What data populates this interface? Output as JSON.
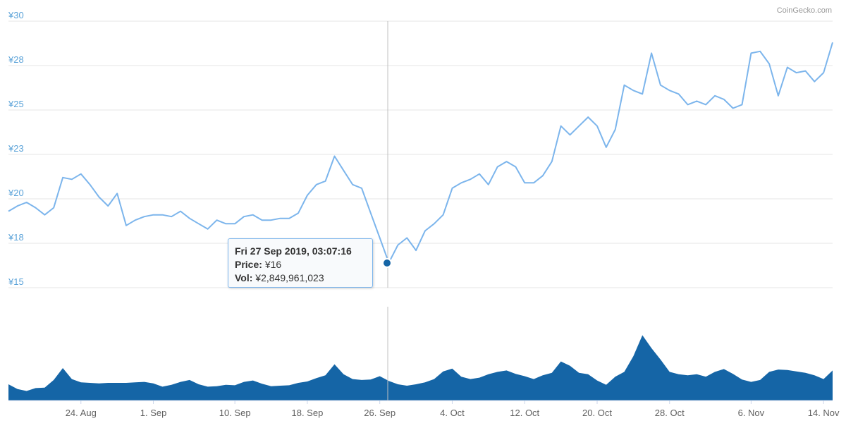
{
  "chart_data": [
    {
      "type": "line",
      "name": "price",
      "ylim": [
        15,
        30
      ],
      "y_ticks": [
        "¥15",
        "¥18",
        "¥20",
        "¥23",
        "¥25",
        "¥28",
        "¥30"
      ],
      "grid": true,
      "series": [
        {
          "color": "#7cb5ec",
          "x": [
            "2019-08-16",
            "2019-08-17",
            "2019-08-18",
            "2019-08-19",
            "2019-08-20",
            "2019-08-21",
            "2019-08-22",
            "2019-08-23",
            "2019-08-24",
            "2019-08-25",
            "2019-08-26",
            "2019-08-27",
            "2019-08-28",
            "2019-08-29",
            "2019-08-30",
            "2019-08-31",
            "2019-09-01",
            "2019-09-02",
            "2019-09-03",
            "2019-09-04",
            "2019-09-05",
            "2019-09-06",
            "2019-09-07",
            "2019-09-08",
            "2019-09-09",
            "2019-09-10",
            "2019-09-11",
            "2019-09-12",
            "2019-09-13",
            "2019-09-14",
            "2019-09-15",
            "2019-09-16",
            "2019-09-17",
            "2019-09-18",
            "2019-09-19",
            "2019-09-20",
            "2019-09-21",
            "2019-09-22",
            "2019-09-23",
            "2019-09-24",
            "2019-09-25",
            "2019-09-26",
            "2019-09-27",
            "2019-09-28",
            "2019-09-29",
            "2019-09-30",
            "2019-10-01",
            "2019-10-02",
            "2019-10-03",
            "2019-10-04",
            "2019-10-05",
            "2019-10-06",
            "2019-10-07",
            "2019-10-08",
            "2019-10-09",
            "2019-10-10",
            "2019-10-11",
            "2019-10-12",
            "2019-10-13",
            "2019-10-14",
            "2019-10-15",
            "2019-10-16",
            "2019-10-17",
            "2019-10-18",
            "2019-10-19",
            "2019-10-20",
            "2019-10-21",
            "2019-10-22",
            "2019-10-23",
            "2019-10-24",
            "2019-10-25",
            "2019-10-26",
            "2019-10-27",
            "2019-10-28",
            "2019-10-29",
            "2019-10-30",
            "2019-10-31",
            "2019-11-01",
            "2019-11-02",
            "2019-11-03",
            "2019-11-04",
            "2019-11-05",
            "2019-11-06",
            "2019-11-07",
            "2019-11-08",
            "2019-11-09",
            "2019-11-10",
            "2019-11-11",
            "2019-11-12",
            "2019-11-13",
            "2019-11-14",
            "2019-11-15"
          ],
          "values": [
            19.3,
            19.6,
            19.8,
            19.5,
            19.1,
            19.5,
            21.2,
            21.1,
            21.4,
            20.8,
            20.1,
            19.6,
            20.3,
            18.5,
            18.8,
            19.0,
            19.1,
            19.1,
            19.0,
            19.3,
            18.9,
            18.6,
            18.3,
            18.8,
            18.6,
            18.6,
            19.0,
            19.1,
            18.8,
            18.8,
            18.9,
            18.9,
            19.2,
            20.2,
            20.8,
            21.0,
            22.4,
            21.6,
            20.8,
            20.6,
            19.2,
            17.8,
            16.4,
            17.4,
            17.8,
            17.1,
            18.2,
            18.6,
            19.1,
            20.6,
            20.9,
            21.1,
            21.4,
            20.8,
            21.8,
            22.1,
            21.8,
            20.9,
            20.9,
            21.3,
            22.1,
            24.1,
            23.6,
            24.1,
            24.6,
            24.1,
            22.9,
            23.9,
            26.4,
            26.1,
            25.9,
            28.2,
            26.4,
            26.1,
            25.9,
            25.3,
            25.5,
            25.3,
            25.8,
            25.6,
            25.1,
            25.3,
            28.2,
            28.3,
            27.6,
            25.8,
            27.4,
            27.1,
            27.2,
            26.6,
            27.1,
            28.8
          ]
        }
      ]
    },
    {
      "type": "area",
      "name": "volume",
      "x_ticks": [
        "24. Aug",
        "1. Sep",
        "10. Sep",
        "18. Sep",
        "26. Sep",
        "4. Oct",
        "12. Oct",
        "20. Oct",
        "28. Oct",
        "6. Nov",
        "14. Nov"
      ],
      "series": [
        {
          "color": "#1565a6",
          "x": [
            "2019-08-16",
            "2019-08-17",
            "2019-08-18",
            "2019-08-19",
            "2019-08-20",
            "2019-08-21",
            "2019-08-22",
            "2019-08-23",
            "2019-08-24",
            "2019-08-25",
            "2019-08-26",
            "2019-08-27",
            "2019-08-28",
            "2019-08-29",
            "2019-08-30",
            "2019-08-31",
            "2019-09-01",
            "2019-09-02",
            "2019-09-03",
            "2019-09-04",
            "2019-09-05",
            "2019-09-06",
            "2019-09-07",
            "2019-09-08",
            "2019-09-09",
            "2019-09-10",
            "2019-09-11",
            "2019-09-12",
            "2019-09-13",
            "2019-09-14",
            "2019-09-15",
            "2019-09-16",
            "2019-09-17",
            "2019-09-18",
            "2019-09-19",
            "2019-09-20",
            "2019-09-21",
            "2019-09-22",
            "2019-09-23",
            "2019-09-24",
            "2019-09-25",
            "2019-09-26",
            "2019-09-27",
            "2019-09-28",
            "2019-09-29",
            "2019-09-30",
            "2019-10-01",
            "2019-10-02",
            "2019-10-03",
            "2019-10-04",
            "2019-10-05",
            "2019-10-06",
            "2019-10-07",
            "2019-10-08",
            "2019-10-09",
            "2019-10-10",
            "2019-10-11",
            "2019-10-12",
            "2019-10-13",
            "2019-10-14",
            "2019-10-15",
            "2019-10-16",
            "2019-10-17",
            "2019-10-18",
            "2019-10-19",
            "2019-10-20",
            "2019-10-21",
            "2019-10-22",
            "2019-10-23",
            "2019-10-24",
            "2019-10-25",
            "2019-10-26",
            "2019-10-27",
            "2019-10-28",
            "2019-10-29",
            "2019-10-30",
            "2019-10-31",
            "2019-11-01",
            "2019-11-02",
            "2019-11-03",
            "2019-11-04",
            "2019-11-05",
            "2019-11-06",
            "2019-11-07",
            "2019-11-08",
            "2019-11-09",
            "2019-11-10",
            "2019-11-11",
            "2019-11-12",
            "2019-11-13",
            "2019-11-14",
            "2019-11-15"
          ],
          "values": [
            0.34,
            0.24,
            0.2,
            0.26,
            0.27,
            0.43,
            0.68,
            0.45,
            0.38,
            0.37,
            0.36,
            0.37,
            0.37,
            0.37,
            0.38,
            0.39,
            0.36,
            0.29,
            0.33,
            0.39,
            0.43,
            0.34,
            0.29,
            0.3,
            0.33,
            0.32,
            0.39,
            0.42,
            0.35,
            0.3,
            0.31,
            0.32,
            0.37,
            0.4,
            0.47,
            0.53,
            0.76,
            0.55,
            0.45,
            0.43,
            0.44,
            0.51,
            0.41,
            0.34,
            0.31,
            0.34,
            0.38,
            0.45,
            0.61,
            0.67,
            0.5,
            0.45,
            0.48,
            0.55,
            0.6,
            0.63,
            0.56,
            0.51,
            0.45,
            0.53,
            0.58,
            0.82,
            0.73,
            0.58,
            0.55,
            0.42,
            0.33,
            0.5,
            0.6,
            0.93,
            1.37,
            1.1,
            0.86,
            0.6,
            0.55,
            0.53,
            0.55,
            0.5,
            0.6,
            0.66,
            0.56,
            0.44,
            0.39,
            0.43,
            0.6,
            0.65,
            0.64,
            0.61,
            0.58,
            0.53,
            0.45,
            0.63
          ]
        }
      ]
    }
  ],
  "tooltip": {
    "date": "Fri 27 Sep 2019, 03:07:16",
    "price_label": "Price:",
    "price_value": "¥16",
    "vol_label": "Vol:",
    "vol_value": "¥2,849,961,023"
  },
  "credit": "CoinGecko.com",
  "colors": {
    "price_line": "#7cb5ec",
    "volume_fill": "#1565a6",
    "axis_text": "#5aa2d8"
  }
}
